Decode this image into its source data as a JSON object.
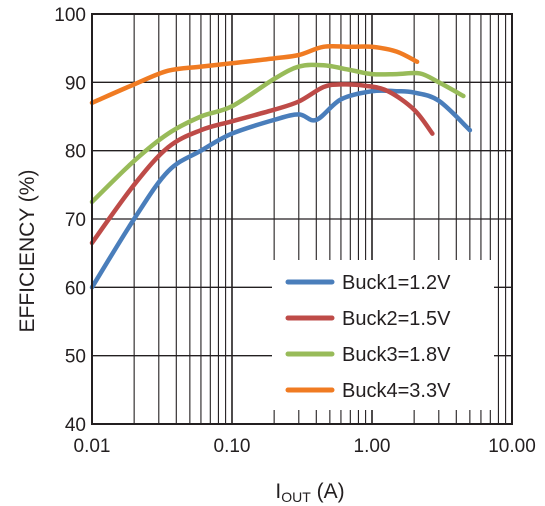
{
  "chart_data": {
    "type": "line",
    "xscale": "log",
    "xlim": [
      0.01,
      10
    ],
    "ylim": [
      40,
      100
    ],
    "grid": true,
    "legend_position": "bottom-right",
    "xlabel_main": "I",
    "xlabel_sub": "OUT",
    "xlabel_unit": " (A)",
    "ylabel": "EFFICIENCY (%)",
    "x_ticks": [
      {
        "value": 0.01,
        "label": "0.01"
      },
      {
        "value": 0.1,
        "label": "0.10"
      },
      {
        "value": 1,
        "label": "1.00"
      },
      {
        "value": 10,
        "label": "10.00"
      }
    ],
    "y_ticks": [
      {
        "value": 40,
        "label": "40"
      },
      {
        "value": 50,
        "label": "50"
      },
      {
        "value": 60,
        "label": "60"
      },
      {
        "value": 70,
        "label": "70"
      },
      {
        "value": 80,
        "label": "80"
      },
      {
        "value": 90,
        "label": "90"
      },
      {
        "value": 100,
        "label": "100"
      }
    ],
    "series": [
      {
        "name": "Buck1=1.2V",
        "color": "#4a7ebb",
        "x": [
          0.01,
          0.02,
          0.035,
          0.06,
          0.1,
          0.2,
          0.3,
          0.4,
          0.6,
          1.0,
          1.5,
          2.0,
          3.0,
          5.0
        ],
        "y": [
          60,
          70,
          77,
          80,
          82.5,
          84.5,
          85.3,
          84.5,
          87.5,
          88.7,
          88.7,
          88.5,
          87.3,
          83
        ]
      },
      {
        "name": "Buck2=1.5V",
        "color": "#be4b48",
        "x": [
          0.01,
          0.02,
          0.035,
          0.06,
          0.1,
          0.2,
          0.3,
          0.45,
          0.6,
          0.9,
          1.3,
          2.0,
          2.7
        ],
        "y": [
          66.5,
          75,
          80.5,
          83,
          84.3,
          86,
          87.2,
          89.3,
          89.7,
          89.5,
          88.7,
          86,
          82.5
        ]
      },
      {
        "name": "Buck3=1.8V",
        "color": "#98bb59",
        "x": [
          0.01,
          0.02,
          0.035,
          0.06,
          0.1,
          0.2,
          0.3,
          0.45,
          0.7,
          1.0,
          1.5,
          2.2,
          3.0,
          4.5
        ],
        "y": [
          72.5,
          78.5,
          82.5,
          85,
          86.5,
          90.5,
          92.3,
          92.5,
          91.8,
          91.2,
          91.2,
          91.3,
          90,
          88
        ]
      },
      {
        "name": "Buck4=3.3V",
        "color": "#f07b22",
        "x": [
          0.01,
          0.02,
          0.035,
          0.06,
          0.1,
          0.2,
          0.3,
          0.45,
          0.7,
          1.0,
          1.5,
          2.1
        ],
        "y": [
          87,
          89.7,
          91.7,
          92.3,
          92.8,
          93.5,
          94,
          95.2,
          95.2,
          95.2,
          94.5,
          93
        ]
      }
    ]
  }
}
